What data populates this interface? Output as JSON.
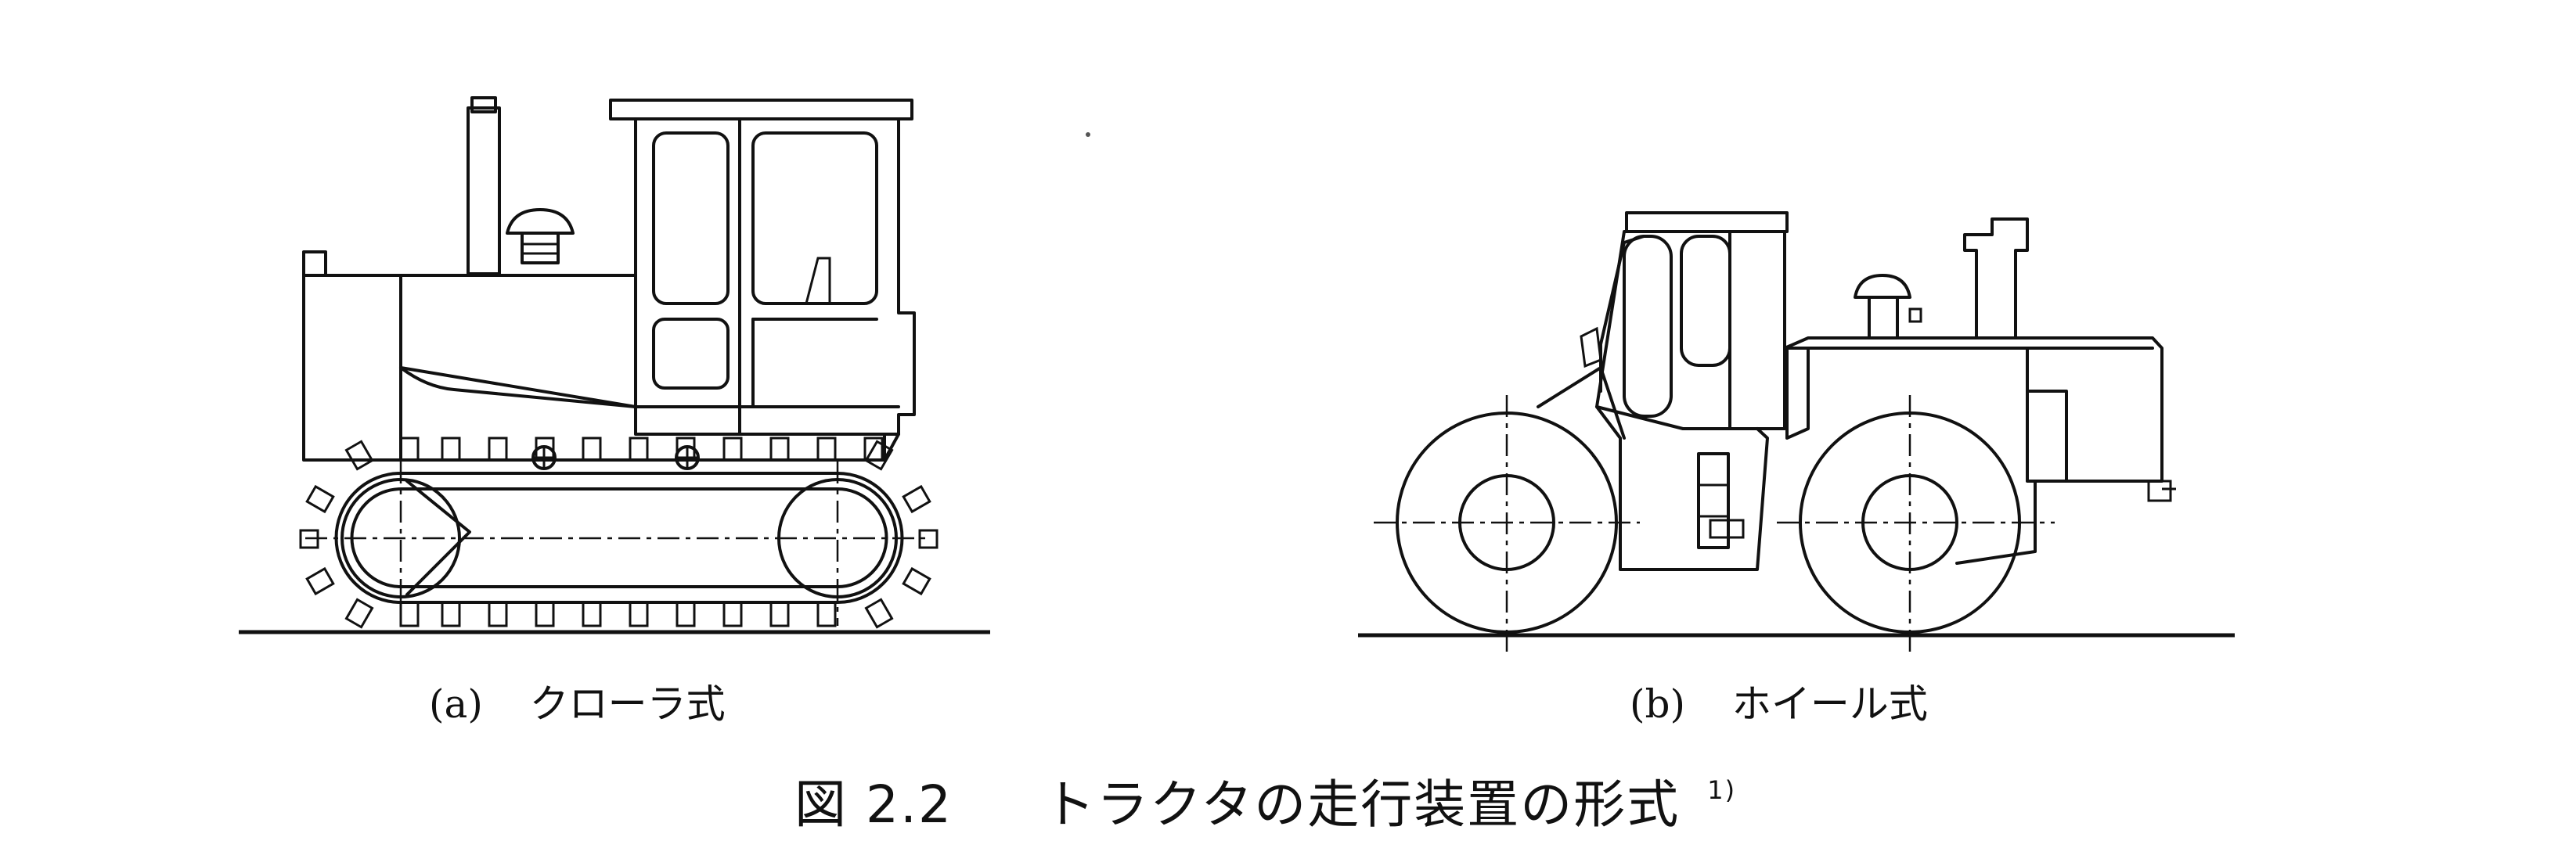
{
  "figure": {
    "caption_number": "図 2.2",
    "caption_text": "トラクタの走行装置の形式",
    "caption_ref": "1)",
    "panels": [
      {
        "id": "a",
        "label": "(a)",
        "name": "クローラ式"
      },
      {
        "id": "b",
        "label": "(b)",
        "name": "ホイール式"
      }
    ]
  }
}
